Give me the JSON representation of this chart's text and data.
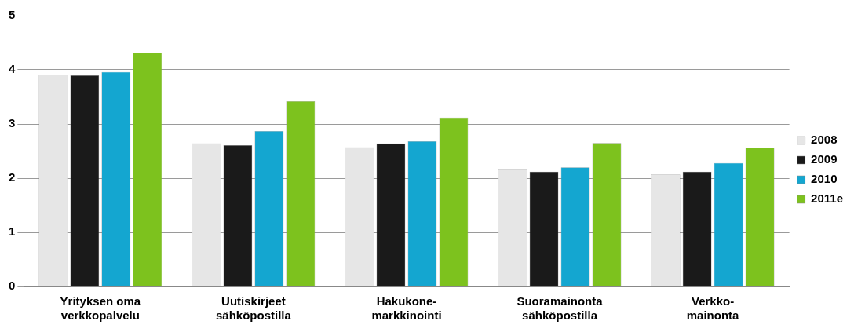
{
  "chart_data": {
    "type": "bar",
    "categories": [
      "Yrityksen oma\nverkkopalvelu",
      "Uutiskirjeet\nsähköpostilla",
      "Hakukone-\nmarkkinointi",
      "Suoramainonta\nsähköpostilla",
      "Verkko-\nmainonta"
    ],
    "series": [
      {
        "name": "2008",
        "color": "#e6e6e6",
        "values": [
          3.91,
          2.64,
          2.57,
          2.17,
          2.07
        ]
      },
      {
        "name": "2009",
        "color": "#1a1a1a",
        "values": [
          3.9,
          2.61,
          2.64,
          2.12,
          2.12
        ]
      },
      {
        "name": "2010",
        "color": "#14a6d0",
        "values": [
          3.96,
          2.87,
          2.68,
          2.2,
          2.28
        ]
      },
      {
        "name": "2011e",
        "color": "#7dc21e",
        "values": [
          4.32,
          3.42,
          3.12,
          2.65,
          2.56
        ]
      }
    ],
    "ylim": [
      0,
      5
    ],
    "yticks": [
      0,
      1,
      2,
      3,
      4,
      5
    ],
    "grid": "y",
    "legend": "right"
  }
}
